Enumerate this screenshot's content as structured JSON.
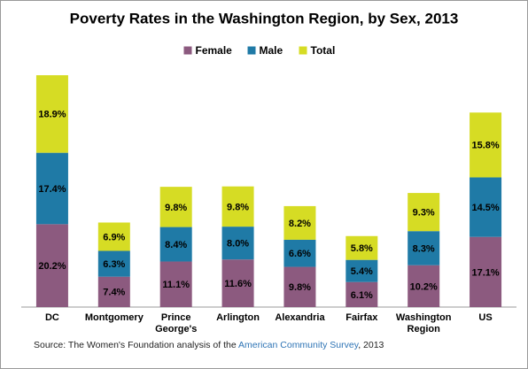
{
  "chart_data": {
    "type": "stacked_bar",
    "title": "Poverty Rates in the Washington Region, by Sex, 2013",
    "categories": [
      "DC",
      "Montgomery",
      "Prince George's",
      "Arlington",
      "Alexandria",
      "Fairfax",
      "Washington Region",
      "US"
    ],
    "series": [
      {
        "name": "Female",
        "color": "#8c5a7f",
        "values": [
          20.2,
          7.4,
          11.1,
          11.6,
          9.8,
          6.1,
          10.2,
          17.1
        ],
        "value_labels": [
          "20.2%",
          "7.4%",
          "11.1%",
          "11.6%",
          "9.8%",
          "6.1%",
          "10.2%",
          "17.1%"
        ]
      },
      {
        "name": "Male",
        "color": "#1f7aa6",
        "values": [
          17.4,
          6.3,
          8.4,
          8.0,
          6.6,
          5.4,
          8.3,
          14.5
        ],
        "value_labels": [
          "17.4%",
          "6.3%",
          "8.4%",
          "8.0%",
          "6.6%",
          "5.4%",
          "8.3%",
          "14.5%"
        ]
      },
      {
        "name": "Total",
        "color": "#d6dc24",
        "values": [
          18.9,
          6.9,
          9.8,
          9.8,
          8.2,
          5.8,
          9.3,
          15.8
        ],
        "value_labels": [
          "18.9%",
          "6.9%",
          "9.8%",
          "9.8%",
          "8.2%",
          "5.8%",
          "9.3%",
          "15.8%"
        ]
      }
    ],
    "legend": "top",
    "source": {
      "prefix": "Source: The Women's Foundation analysis of the ",
      "link": "American Community Survey",
      "suffix": ", 2013"
    }
  }
}
